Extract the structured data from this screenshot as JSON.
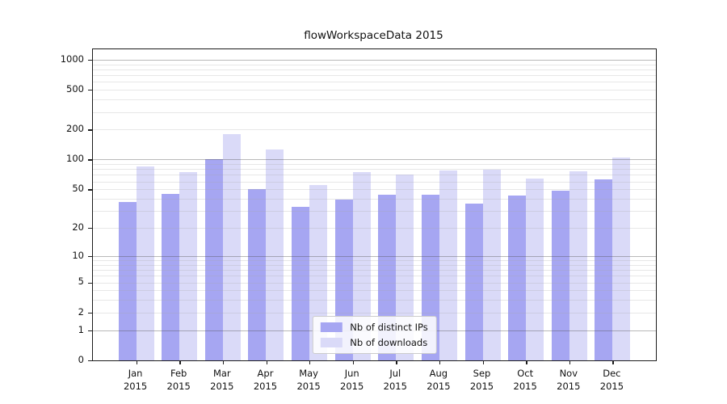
{
  "chart_data": {
    "type": "bar",
    "title": "flowWorkspaceData 2015",
    "categories": [
      "Jan",
      "Feb",
      "Mar",
      "Apr",
      "May",
      "Jun",
      "Jul",
      "Aug",
      "Sep",
      "Oct",
      "Nov",
      "Dec"
    ],
    "x_sublabel": "2015",
    "series": [
      {
        "name": "Nb of distinct IPs",
        "color": "#a6a6f2",
        "values": [
          37,
          45,
          100,
          50,
          33,
          39,
          44,
          44,
          36,
          43,
          48,
          63
        ]
      },
      {
        "name": "Nb of downloads",
        "color": "#dadaf8",
        "values": [
          85,
          75,
          180,
          127,
          55,
          74,
          70,
          78,
          79,
          64,
          76,
          105
        ]
      }
    ],
    "yscale": "log1p",
    "ylim": [
      0,
      1270
    ],
    "yticks": [
      0,
      1,
      2,
      5,
      10,
      20,
      50,
      100,
      200,
      500,
      1000
    ],
    "grid": "horizontal major at powers of 10, minor at 2-9 per decade",
    "legend_position": "inside bottom center",
    "xlabel": "",
    "ylabel": ""
  }
}
